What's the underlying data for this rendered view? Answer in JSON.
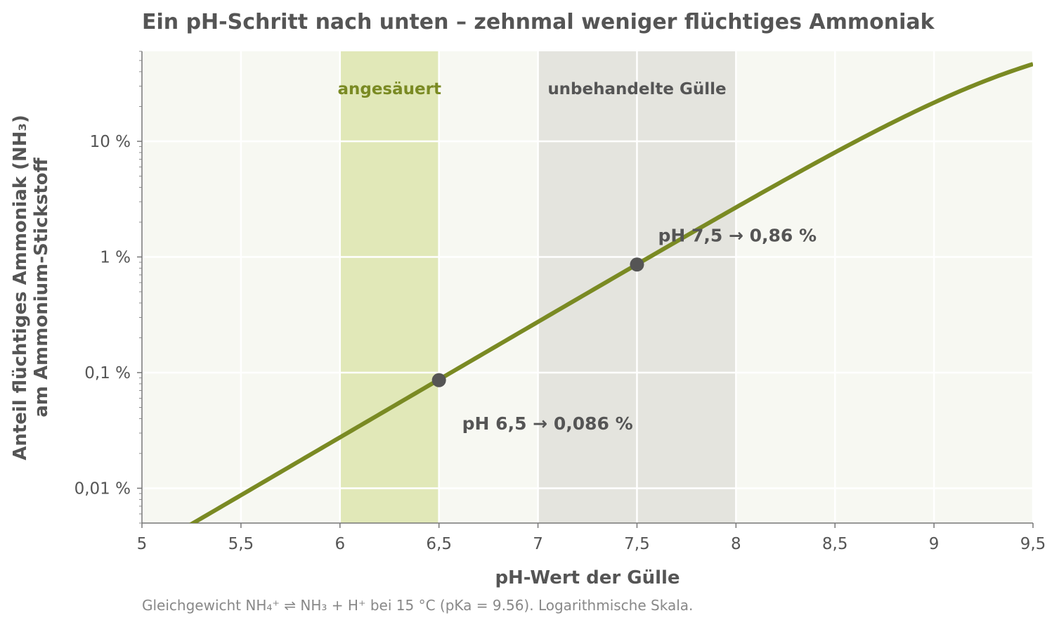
{
  "colors": {
    "plot_bg": "#f7f8f2",
    "grid": "#ffffff",
    "line": "#7a8a23",
    "acid_band": "#e1e8b8",
    "acid_label": "#7a8a23",
    "untreated_band": "#e4e4de",
    "untreated_label": "#555555",
    "marker": "#555555",
    "text": "#555555",
    "footnote": "#888888"
  },
  "chart_data": {
    "type": "line",
    "title": "Ein pH-Schritt nach unten – zehnmal weniger flüchtiges Ammoniak",
    "xlabel": "pH-Wert der Gülle",
    "ylabel_line1": "Anteil flüchtiges Ammoniak (NH₃)",
    "ylabel_line2": "am Ammonium-Stickstoff",
    "footnote": "Gleichgewicht NH₄⁺ ⇌ NH₃ + H⁺ bei 15 °C (pKa = 9.56). Logarithmische Skala.",
    "pKa": 9.56,
    "xlim": [
      5,
      9.5
    ],
    "ylim": [
      0.005,
      60
    ],
    "yscale": "log",
    "grid": true,
    "x_ticks": [
      {
        "value": 5,
        "label": "5"
      },
      {
        "value": 5.5,
        "label": "5,5"
      },
      {
        "value": 6,
        "label": "6"
      },
      {
        "value": 6.5,
        "label": "6,5"
      },
      {
        "value": 7,
        "label": "7"
      },
      {
        "value": 7.5,
        "label": "7,5"
      },
      {
        "value": 8,
        "label": "8"
      },
      {
        "value": 8.5,
        "label": "8,5"
      },
      {
        "value": 9,
        "label": "9"
      },
      {
        "value": 9.5,
        "label": "9,5"
      }
    ],
    "y_ticks": [
      {
        "value": 0.01,
        "label": "0,01 %"
      },
      {
        "value": 0.1,
        "label": "0,1 %"
      },
      {
        "value": 1,
        "label": "1 %"
      },
      {
        "value": 10,
        "label": "10 %"
      }
    ],
    "bands": [
      {
        "name": "angesäuert",
        "x": [
          6,
          6.5
        ]
      },
      {
        "name": "unbehandelte Gülle",
        "x": [
          7,
          8
        ]
      }
    ],
    "series": [
      {
        "x": [
          5.25,
          5.5,
          5.75,
          6.0,
          6.25,
          6.5,
          6.75,
          7.0,
          7.25,
          7.5,
          7.75,
          8.0,
          8.25,
          8.5,
          8.75,
          9.0,
          9.25,
          9.5
        ],
        "y": [
          0.0049,
          0.0087,
          0.0155,
          0.0275,
          0.0489,
          0.087,
          0.1546,
          0.2746,
          0.4872,
          0.863,
          1.5235,
          2.676,
          4.669,
          8.014,
          13.41,
          21.59,
          32.88,
          46.55
        ]
      }
    ],
    "points": [
      {
        "x": 6.5,
        "y": 0.086,
        "label": "pH 6,5  →  0,086 %"
      },
      {
        "x": 7.5,
        "y": 0.86,
        "label": "pH 7,5  →  0,86 %"
      }
    ]
  }
}
